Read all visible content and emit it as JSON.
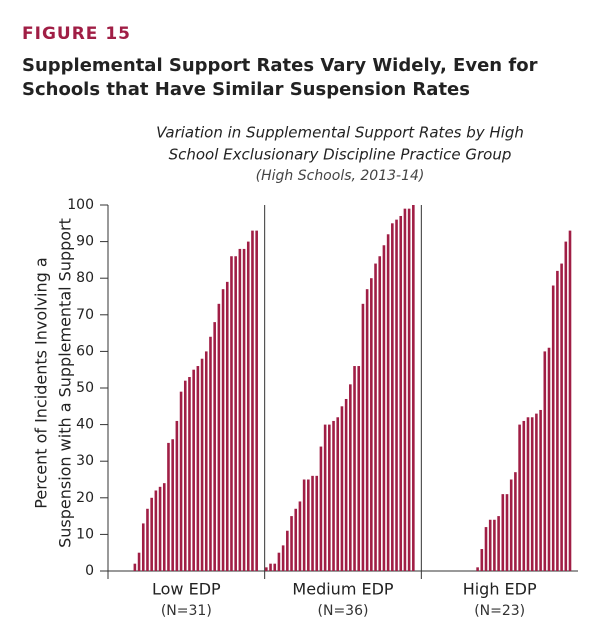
{
  "chart_data": {
    "type": "bar",
    "figure_label": "FIGURE 15",
    "title": [
      "Supplemental Support Rates Vary Widely, Even for",
      "Schools that Have Similar Suspension Rates"
    ],
    "subtitle": [
      "Variation in Supplemental Support Rates by High",
      "School Exclusionary Discipline Practice Group",
      "(High Schools, 2013-14)"
    ],
    "y_label": [
      "Percent of Incidents Involving a",
      "Suspension with a Supplemental Support"
    ],
    "color": "#a01e45",
    "ylim": [
      0,
      100
    ],
    "yticks": [
      0,
      10,
      20,
      30,
      40,
      50,
      60,
      70,
      80,
      90,
      100
    ],
    "panels": [
      {
        "label": "Low EDP",
        "sublabel": "(N=31)",
        "values": [
          0,
          2,
          5,
          13,
          17,
          20,
          22,
          23,
          24,
          35,
          36,
          41,
          49,
          52,
          53,
          55,
          56,
          58,
          60,
          64,
          68,
          73,
          77,
          79,
          86,
          86,
          88,
          88,
          90,
          93,
          93
        ]
      },
      {
        "label": "Medium EDP",
        "sublabel": "(N=36)",
        "values": [
          1,
          2,
          2,
          5,
          7,
          11,
          15,
          17,
          19,
          25,
          25,
          26,
          26,
          34,
          40,
          40,
          41,
          42,
          45,
          47,
          51,
          56,
          56,
          73,
          77,
          80,
          84,
          86,
          89,
          92,
          95,
          96,
          97,
          99,
          99,
          100
        ]
      },
      {
        "label": "High EDP",
        "sublabel": "(N=23)",
        "values": [
          1,
          6,
          12,
          14,
          14,
          15,
          21,
          21,
          25,
          27,
          40,
          41,
          42,
          42,
          43,
          44,
          60,
          61,
          78,
          82,
          84,
          90,
          93
        ]
      }
    ]
  }
}
